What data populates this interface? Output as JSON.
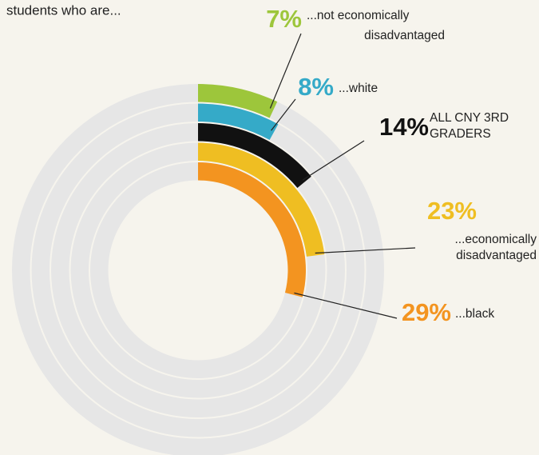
{
  "chart_data": {
    "type": "radial_bar",
    "title": "students who are...",
    "categories": [
      [
        "...not economically",
        "disadvantaged"
      ],
      [
        "...white"
      ],
      [
        "ALL CNY 3RD",
        "GRADERS"
      ],
      [
        "...economically",
        "disadvantaged"
      ],
      [
        "...black"
      ]
    ],
    "values": [
      7,
      8,
      14,
      23,
      29
    ],
    "value_labels": [
      "7%",
      "8%",
      "14%",
      "23%",
      "29%"
    ],
    "colors": [
      "#9dc63b",
      "#35aac8",
      "#111111",
      "#efbe22",
      "#f39420"
    ],
    "ylim": [
      0,
      100
    ]
  }
}
